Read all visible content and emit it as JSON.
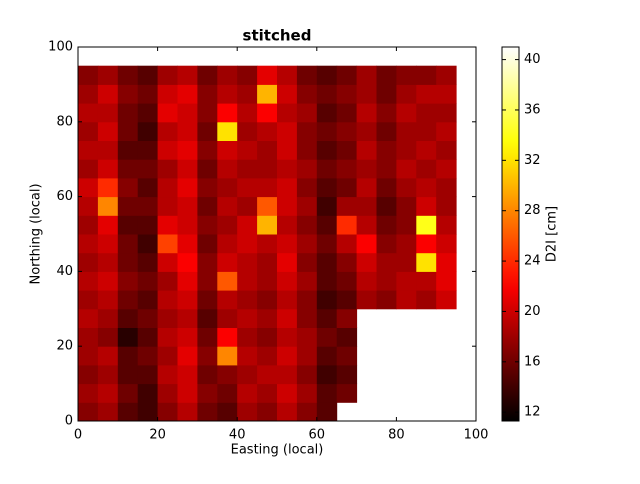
{
  "chart_data": {
    "type": "heatmap",
    "title": "stitched",
    "xlabel": "Easting (local)",
    "ylabel": "Northing (local)",
    "colorbar_label": "D2I [cm]",
    "colormap": "hot",
    "xlim": [
      0,
      100
    ],
    "ylim": [
      0,
      100
    ],
    "xticks": [
      0,
      20,
      40,
      60,
      80,
      100
    ],
    "yticks": [
      0,
      20,
      40,
      60,
      80,
      100
    ],
    "clim": [
      11.3,
      41
    ],
    "cticks": [
      12,
      16,
      20,
      24,
      28,
      32,
      36,
      40
    ],
    "x": [
      2.5,
      7.5,
      12.5,
      17.5,
      22.5,
      27.5,
      32.5,
      37.5,
      42.5,
      47.5,
      52.5,
      57.5,
      62.5,
      67.5,
      72.5,
      77.5,
      82.5,
      87.5,
      92.5,
      97.5
    ],
    "y": [
      2.5,
      7.5,
      12.5,
      17.5,
      22.5,
      27.5,
      32.5,
      37.5,
      42.5,
      47.5,
      52.5,
      57.5,
      62.5,
      67.5,
      72.5,
      77.5,
      82.5,
      87.5,
      92.5,
      97.5
    ],
    "values": [
      [
        17,
        18,
        15,
        14,
        17,
        19,
        16,
        15,
        18,
        17,
        19,
        17,
        15,
        null,
        null,
        null,
        null,
        null,
        null,
        null
      ],
      [
        18,
        19,
        16,
        14,
        18,
        20,
        17,
        16,
        19,
        18,
        20,
        18,
        15,
        16,
        null,
        null,
        null,
        null,
        null,
        null
      ],
      [
        17,
        18,
        15,
        15,
        19,
        20,
        16,
        17,
        18,
        19,
        19,
        17,
        14,
        15,
        null,
        null,
        null,
        null,
        null,
        null
      ],
      [
        18,
        19,
        15,
        16,
        18,
        21,
        17,
        28,
        19,
        18,
        20,
        18,
        15,
        16,
        null,
        null,
        null,
        null,
        null,
        null
      ],
      [
        18,
        17,
        13,
        15,
        19,
        20,
        16,
        22,
        18,
        17,
        19,
        18,
        16,
        15,
        null,
        null,
        null,
        null,
        null,
        null
      ],
      [
        19,
        18,
        15,
        16,
        18,
        19,
        15,
        18,
        19,
        18,
        20,
        17,
        15,
        17,
        null,
        null,
        null,
        null,
        null,
        null
      ],
      [
        18,
        19,
        16,
        15,
        19,
        20,
        16,
        19,
        18,
        17,
        19,
        17,
        14,
        15,
        18,
        17,
        19,
        18,
        20,
        null
      ],
      [
        19,
        20,
        17,
        16,
        18,
        21,
        17,
        26,
        19,
        18,
        20,
        18,
        15,
        16,
        19,
        18,
        19,
        19,
        21,
        null
      ],
      [
        18,
        19,
        16,
        15,
        20,
        22,
        17,
        20,
        19,
        18,
        21,
        17,
        15,
        17,
        20,
        18,
        18,
        32,
        21,
        null
      ],
      [
        19,
        20,
        16,
        14,
        25,
        21,
        16,
        19,
        20,
        19,
        20,
        18,
        16,
        19,
        22,
        17,
        18,
        22,
        20,
        null
      ],
      [
        18,
        21,
        15,
        15,
        21,
        20,
        17,
        18,
        20,
        30,
        19,
        17,
        15,
        24,
        19,
        16,
        17,
        34,
        19,
        null
      ],
      [
        19,
        28,
        16,
        16,
        19,
        20,
        16,
        19,
        18,
        26,
        20,
        18,
        14,
        18,
        18,
        15,
        17,
        20,
        18,
        null
      ],
      [
        20,
        24,
        17,
        15,
        19,
        21,
        17,
        18,
        19,
        19,
        20,
        17,
        15,
        16,
        19,
        16,
        18,
        19,
        18,
        null
      ],
      [
        18,
        20,
        16,
        16,
        18,
        20,
        16,
        19,
        18,
        18,
        19,
        18,
        16,
        17,
        18,
        17,
        19,
        18,
        19,
        null
      ],
      [
        19,
        19,
        15,
        15,
        20,
        21,
        17,
        20,
        19,
        18,
        20,
        17,
        15,
        16,
        19,
        17,
        18,
        19,
        18,
        null
      ],
      [
        18,
        20,
        16,
        14,
        19,
        20,
        16,
        32,
        18,
        19,
        20,
        17,
        16,
        17,
        18,
        16,
        18,
        18,
        19,
        null
      ],
      [
        19,
        19,
        16,
        15,
        21,
        20,
        17,
        22,
        19,
        22,
        19,
        18,
        15,
        16,
        19,
        17,
        19,
        18,
        18,
        null
      ],
      [
        18,
        20,
        17,
        16,
        20,
        21,
        17,
        19,
        18,
        30,
        20,
        17,
        16,
        17,
        18,
        16,
        18,
        19,
        19,
        null
      ],
      [
        17,
        18,
        16,
        15,
        18,
        19,
        16,
        18,
        17,
        21,
        19,
        16,
        15,
        16,
        18,
        16,
        17,
        17,
        18,
        null
      ],
      [
        null,
        null,
        null,
        null,
        null,
        null,
        null,
        null,
        null,
        null,
        null,
        null,
        null,
        null,
        null,
        null,
        null,
        null,
        null,
        null
      ]
    ]
  }
}
